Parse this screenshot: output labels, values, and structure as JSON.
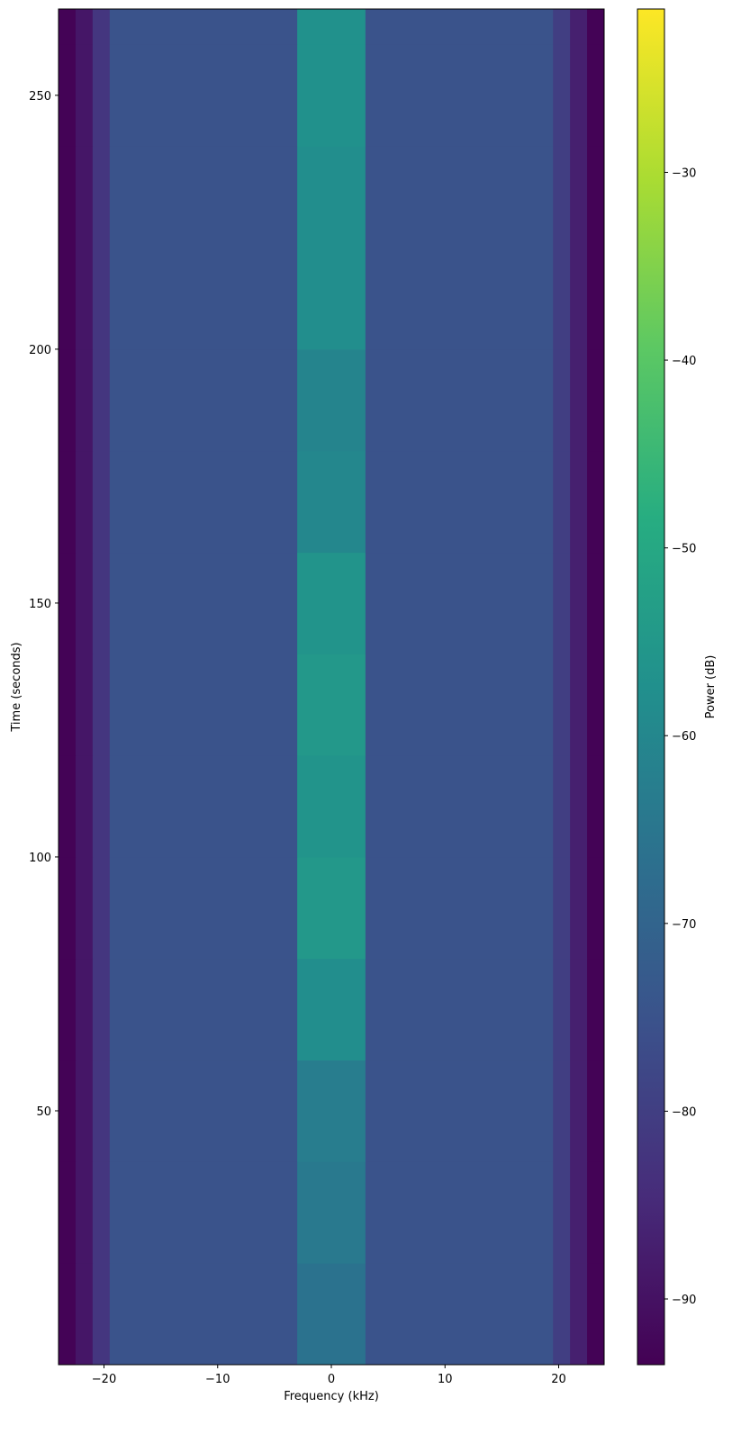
{
  "chart_data": {
    "type": "heatmap",
    "x_label": "Frequency (kHz)",
    "y_label": "Time (seconds)",
    "colorbar_label": "Power (dB)",
    "colormap": "viridis",
    "x_bins": [
      -24,
      -22.5,
      -21,
      -19.5,
      -3,
      3,
      19.5,
      21,
      22.5,
      24
    ],
    "y_bins": [
      0,
      20,
      40,
      60,
      80,
      100,
      120,
      140,
      160,
      180,
      200,
      220,
      240,
      260,
      267
    ],
    "z": [
      [
        -93,
        -89,
        -82,
        -75,
        -66,
        -75,
        -80,
        -87,
        -93
      ],
      [
        -93,
        -89,
        -82,
        -75,
        -64,
        -75,
        -80,
        -87,
        -93
      ],
      [
        -93,
        -89,
        -82,
        -75,
        -63,
        -75,
        -80,
        -87,
        -93
      ],
      [
        -93,
        -89,
        -82,
        -75,
        -58,
        -75,
        -80,
        -87,
        -93
      ],
      [
        -93,
        -89,
        -82,
        -75,
        -55,
        -75,
        -80,
        -87,
        -93
      ],
      [
        -93,
        -89,
        -82,
        -75,
        -56,
        -75,
        -80,
        -87,
        -93
      ],
      [
        -93,
        -89,
        -82,
        -75,
        -55,
        -75,
        -80,
        -87,
        -93
      ],
      [
        -93,
        -89,
        -82,
        -75,
        -56,
        -75,
        -80,
        -87,
        -93
      ],
      [
        -93,
        -89,
        -82,
        -75,
        -60,
        -75,
        -80,
        -87,
        -93
      ],
      [
        -93,
        -89,
        -82,
        -75,
        -61,
        -75,
        -80,
        -87,
        -93
      ],
      [
        -93,
        -89,
        -82,
        -75,
        -58,
        -75,
        -80,
        -87,
        -93
      ],
      [
        -93,
        -89,
        -82,
        -75,
        -58,
        -75,
        -80,
        -87,
        -93
      ],
      [
        -93,
        -89,
        -82,
        -75,
        -57,
        -75,
        -80,
        -87,
        -93
      ],
      [
        -93,
        -89,
        -82,
        -75,
        -57,
        -75,
        -80,
        -87,
        -93
      ]
    ],
    "xlim": [
      -24,
      24
    ],
    "ylim": [
      0,
      267
    ],
    "clim": [
      -93.5,
      -21.3
    ],
    "xticks": [
      {
        "value": -20,
        "label": "−20"
      },
      {
        "value": -10,
        "label": "−10"
      },
      0,
      10,
      20
    ],
    "yticks": [
      50,
      100,
      150,
      200,
      250
    ],
    "colorbar_ticks": [
      {
        "value": -90,
        "label": "−90"
      },
      {
        "value": -80,
        "label": "−80"
      },
      {
        "value": -70,
        "label": "−70"
      },
      {
        "value": -60,
        "label": "−60"
      },
      {
        "value": -50,
        "label": "−50"
      },
      {
        "value": -40,
        "label": "−40"
      },
      {
        "value": -30,
        "label": "−30"
      }
    ]
  }
}
